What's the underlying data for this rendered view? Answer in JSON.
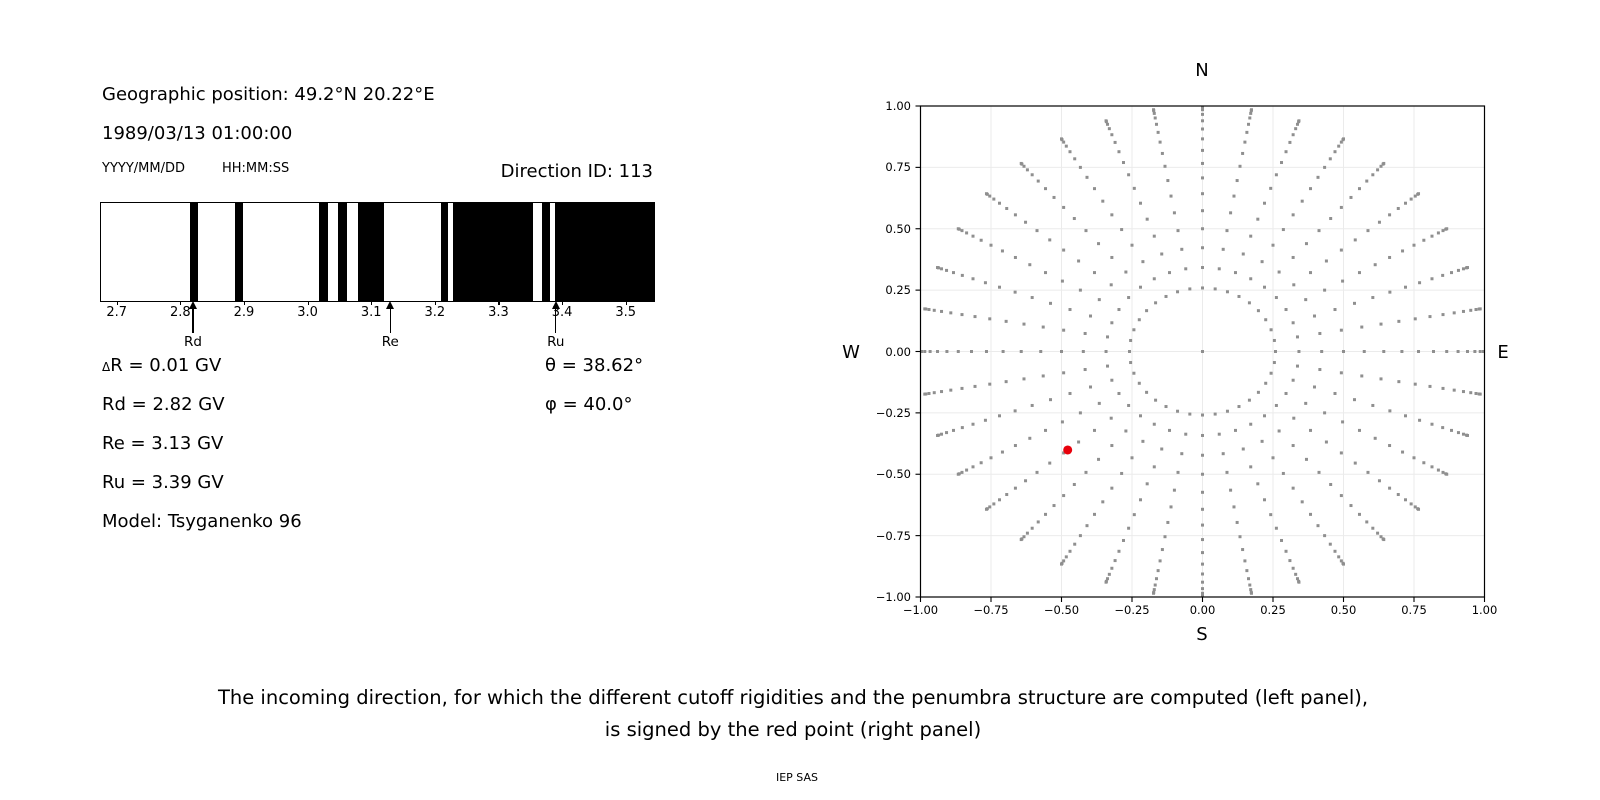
{
  "info": {
    "geo_position": "Geographic position: 49.2°N 20.22°E",
    "datetime": "1989/03/13 01:00:00",
    "date_format_label": "YYYY/MM/DD",
    "time_format_label": "HH:MM:SS",
    "direction_id_label": "Direction ID: 113"
  },
  "penumbra": {
    "bar_color": "#000000",
    "axis_min": 2.676,
    "axis_max": 3.545,
    "ticks": [
      "2.7",
      "2.8",
      "2.9",
      "3.0",
      "3.1",
      "3.2",
      "3.3",
      "3.4",
      "3.5"
    ],
    "tick_values": [
      2.7,
      2.8,
      2.9,
      3.0,
      3.1,
      3.2,
      3.3,
      3.4,
      3.5
    ],
    "bars": [
      [
        2.816,
        2.828
      ],
      [
        2.886,
        2.899
      ],
      [
        3.019,
        3.033
      ],
      [
        3.049,
        3.063
      ],
      [
        3.08,
        3.12
      ],
      [
        3.21,
        3.222
      ],
      [
        3.229,
        3.355
      ],
      [
        3.369,
        3.382
      ],
      [
        3.39,
        3.545
      ]
    ],
    "markers": [
      {
        "label": "Rd",
        "value": 2.82
      },
      {
        "label": "Re",
        "value": 3.13
      },
      {
        "label": "Ru",
        "value": 3.39
      }
    ]
  },
  "results": {
    "delta_symbol": "Δ",
    "delta_rest": "R = 0.01 GV",
    "rd": "Rd = 2.82 GV",
    "re": "Re = 3.13 GV",
    "ru": "Ru = 3.39 GV",
    "model": "Model: Tsyganenko 96",
    "theta": "θ = 38.62°",
    "phi": "φ = 40.0°"
  },
  "chart_data": {
    "type": "scatter",
    "title": "",
    "label_top": "N",
    "label_bottom": "S",
    "label_left": "W",
    "label_right": "E",
    "xlim": [
      -1,
      1
    ],
    "ylim": [
      -1,
      1
    ],
    "grid": true,
    "grid_step": 0.25,
    "grid_color": "#ebebeb",
    "xtick_labels": [
      "−1.00",
      "−0.75",
      "−0.50",
      "−0.25",
      "0.00",
      "0.25",
      "0.50",
      "0.75",
      "1.00"
    ],
    "ytick_labels": [
      "1.00",
      "0.75",
      "0.50",
      "0.25",
      "0.00",
      "−0.25",
      "−0.50",
      "−0.75",
      "−1.00"
    ],
    "direction_grid": {
      "azimuth_deg_start": 0,
      "azimuth_deg_stop": 350,
      "azimuth_deg_step": 10,
      "zenith_deg_start": 15,
      "zenith_deg_stop": 90,
      "zenith_deg_step": 5,
      "radius_mapping": "sin(zenith)",
      "includes_center_point": true,
      "dot_color": "#8f8f8f",
      "dot_size_px": 3
    },
    "red_point": {
      "x": -0.478,
      "y": -0.401,
      "color": "#e8000b",
      "radius_px": 4.5
    }
  },
  "caption": {
    "line1": "The incoming direction, for which the different cutoff rigidities and the penumbra structure are computed (left panel),",
    "line2": "is signed by the red point (right panel)",
    "credit": "IEP SAS"
  }
}
